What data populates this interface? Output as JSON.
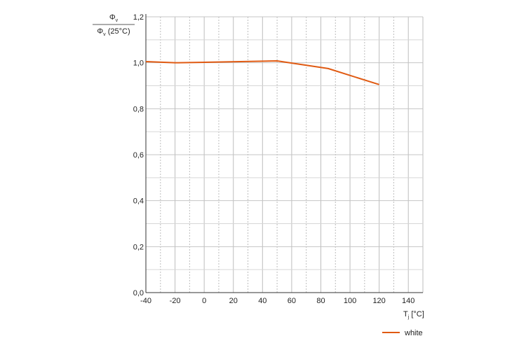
{
  "chart_data": {
    "type": "line",
    "ylabel": {
      "numerator": "Φ",
      "numerator_sub": "v",
      "denominator": "Φ",
      "denominator_sub": "v",
      "denominator_suffix": " (25°C)"
    },
    "xlabel": {
      "main": "T",
      "sub": "j",
      "unit": " [°C]"
    },
    "xlim": [
      -40,
      150
    ],
    "ylim": [
      0,
      1.2
    ],
    "x_ticks": [
      -40,
      -20,
      0,
      20,
      40,
      60,
      80,
      100,
      120,
      140
    ],
    "x_tick_labels": [
      "-40",
      "-20",
      "0",
      "20",
      "40",
      "60",
      "80",
      "100",
      "120",
      "140"
    ],
    "y_ticks": [
      0,
      0.2,
      0.4,
      0.6,
      0.8,
      1.0,
      1.2
    ],
    "y_tick_labels": [
      "0,0",
      "0,2",
      "0,4",
      "0,6",
      "0,8",
      "1,0",
      "1,2"
    ],
    "grid": true,
    "legend_position": "bottom-right",
    "series": [
      {
        "name": "white",
        "color": "#e05a12",
        "x": [
          -40,
          -20,
          0,
          25,
          50,
          85,
          120
        ],
        "y": [
          1.005,
          1.0,
          1.002,
          1.005,
          1.008,
          0.975,
          0.905
        ]
      }
    ]
  }
}
